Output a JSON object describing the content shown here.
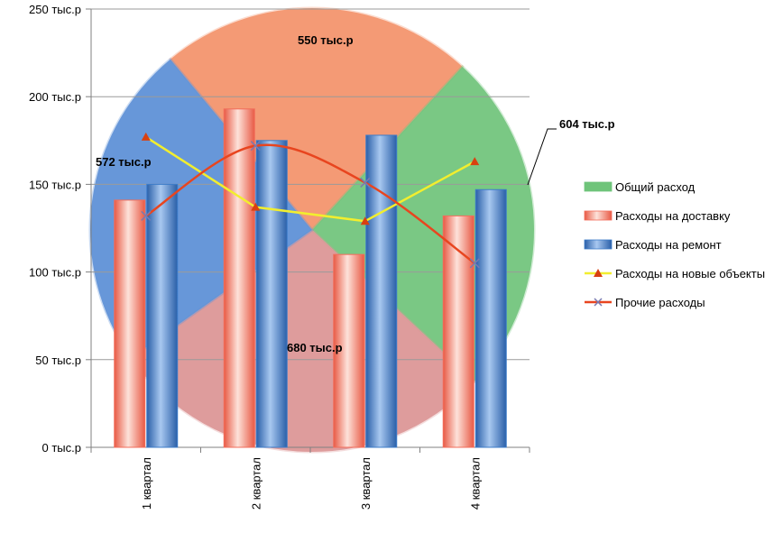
{
  "chart_data": [
    {
      "type": "pie",
      "categories": [
        "550 тыс.р",
        "604 тыс.р",
        "680 тыс.р",
        "572 тыс.р"
      ],
      "values": [
        550,
        604,
        680,
        572
      ],
      "colors": [
        "#f4926a",
        "#6fc47a",
        "#dc9494",
        "#5b8fd6"
      ],
      "labels": [
        "550 тыс.р",
        "604 тыс.р",
        "680 тыс.р",
        "572 тыс.р"
      ]
    },
    {
      "type": "bar",
      "categories": [
        "1 квартал",
        "2 квартал",
        "3 квартал",
        "4 квартал"
      ],
      "ylim": [
        0,
        250
      ],
      "yticks": [
        "0 тыс.р",
        "50 тыс.р",
        "100 тыс.р",
        "150 тыс.р",
        "200 тыс.р",
        "250 тыс.р"
      ],
      "ytick_values": [
        0,
        50,
        100,
        150,
        200,
        250
      ],
      "grid": true,
      "series": [
        {
          "name": "Расходы на доставку",
          "type": "bar",
          "color": "#f26d5b",
          "values": [
            141,
            193,
            110,
            132
          ]
        },
        {
          "name": "Расходы на ремонт",
          "type": "bar",
          "color": "#3d7cc9",
          "values": [
            150,
            175,
            178,
            147
          ]
        },
        {
          "name": "Расходы на новые объекты",
          "type": "line",
          "color": "#f2ee2e",
          "marker_color": "#d94010",
          "values": [
            177,
            137,
            129,
            163
          ]
        },
        {
          "name": "Прочие расходы",
          "type": "line",
          "color": "#e8451f",
          "marker_color": "#7a7ab0",
          "values": [
            132,
            172,
            151,
            105
          ]
        }
      ]
    }
  ],
  "legend": {
    "placement": "right",
    "items": [
      {
        "label": "Общий расход",
        "swatch": "rect",
        "color": "#6fc47a"
      },
      {
        "label": "Расходы на доставку",
        "swatch": "rect",
        "color": "#f26d5b"
      },
      {
        "label": "Расходы на ремонт",
        "swatch": "rect",
        "color": "#3d7cc9"
      },
      {
        "label": "Расходы на новые объекты",
        "swatch": "line-triangle",
        "color": "#f2ee2e",
        "marker_color": "#d94010"
      },
      {
        "label": "Прочие расходы",
        "swatch": "line-x",
        "color": "#e8451f",
        "marker_color": "#7a7ab0"
      }
    ]
  }
}
